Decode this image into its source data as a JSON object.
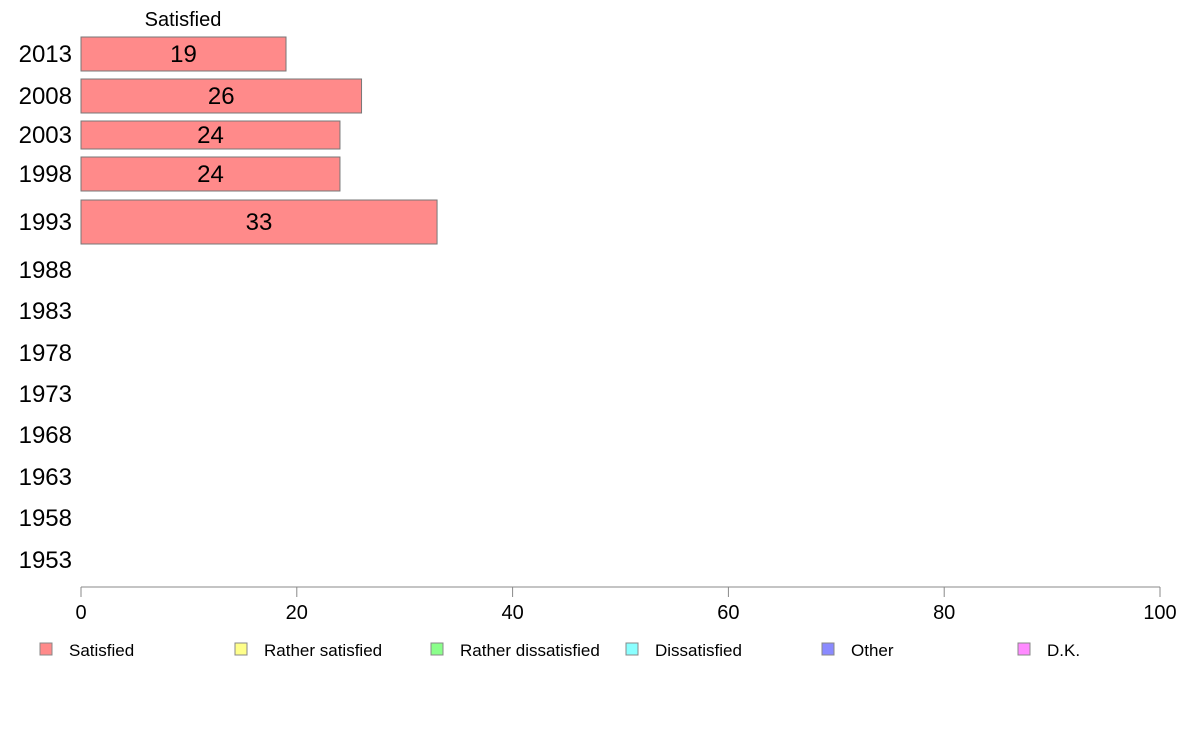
{
  "chart_data": {
    "type": "bar",
    "orientation": "horizontal",
    "header_label": "Satisfied",
    "categories": [
      "2013",
      "2008",
      "2003",
      "1998",
      "1993",
      "1988",
      "1983",
      "1978",
      "1973",
      "1968",
      "1963",
      "1958",
      "1953"
    ],
    "series": [
      {
        "name": "Satisfied",
        "color": "#ff8a8a",
        "values": [
          19,
          26,
          24,
          24,
          33,
          null,
          null,
          null,
          null,
          null,
          null,
          null,
          null
        ]
      }
    ],
    "data_labels": [
      "19",
      "26",
      "24",
      "24",
      "33"
    ],
    "xlim": [
      0,
      100
    ],
    "x_ticks": [
      "0",
      "20",
      "40",
      "60",
      "80",
      "100"
    ],
    "grid": false,
    "legend": {
      "placement": "bottom",
      "items": [
        {
          "label": "Satisfied",
          "color": "#ff8a8a"
        },
        {
          "label": "Rather satisfied",
          "color": "#ffff8a"
        },
        {
          "label": "Rather dissatisfied",
          "color": "#8aff8a"
        },
        {
          "label": "Dissatisfied",
          "color": "#8affff"
        },
        {
          "label": "Other",
          "color": "#8a8aff"
        },
        {
          "label": "D.K.",
          "color": "#ff8aff"
        }
      ]
    }
  }
}
